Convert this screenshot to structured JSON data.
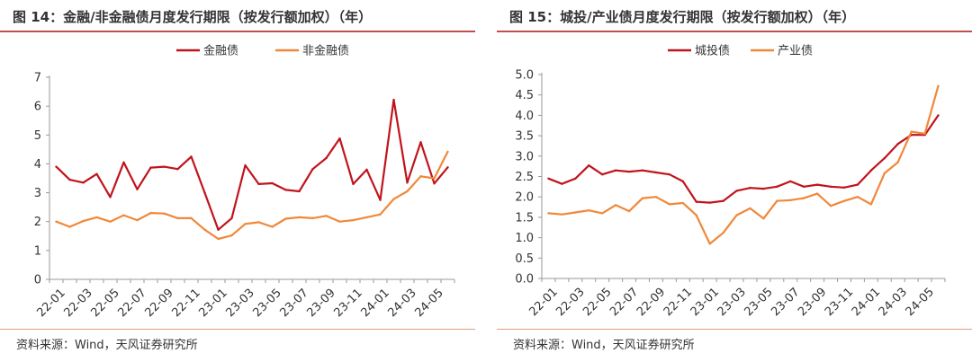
{
  "charts": [
    {
      "title": "图 14：金融/非金融债月度发行期限（按发行额加权）（年）",
      "source": "资料来源：Wind，天风证券研究所"
    },
    {
      "title": "图 15：城投/产业债月度发行期限（按发行额加权）（年）",
      "source": "资料来源：Wind，天风证券研究所"
    }
  ],
  "colors": {
    "primary": "#c0141c",
    "secondary": "#f0883a",
    "accent_line": "#c0504d"
  },
  "chart_data": [
    {
      "type": "line",
      "title": "",
      "xlabel": "",
      "ylabel": "",
      "ylim": [
        0,
        7
      ],
      "yticks": [
        "0",
        "1",
        "2",
        "3",
        "4",
        "5",
        "6",
        "7"
      ],
      "grid": false,
      "legend_position": "top-center",
      "x": [
        "22-01",
        "22-02",
        "22-03",
        "22-04",
        "22-05",
        "22-06",
        "22-07",
        "22-08",
        "22-09",
        "22-10",
        "22-11",
        "22-12",
        "23-01",
        "23-02",
        "23-03",
        "23-04",
        "23-05",
        "23-06",
        "23-07",
        "23-08",
        "23-09",
        "23-10",
        "23-11",
        "23-12",
        "24-01",
        "24-02",
        "24-03",
        "24-04",
        "24-05",
        "24-06"
      ],
      "xtick_labels": [
        "22-01",
        "22-03",
        "22-05",
        "22-07",
        "22-09",
        "22-11",
        "23-01",
        "23-03",
        "23-05",
        "23-07",
        "23-09",
        "23-11",
        "24-01",
        "24-03",
        "24-05"
      ],
      "series": [
        {
          "name": "金融债",
          "color": "#c0141c",
          "values": [
            3.9,
            3.45,
            3.35,
            3.65,
            2.85,
            4.05,
            3.12,
            3.87,
            3.9,
            3.82,
            4.25,
            3.0,
            1.72,
            2.12,
            3.95,
            3.3,
            3.33,
            3.1,
            3.05,
            3.82,
            4.2,
            4.88,
            3.3,
            3.8,
            2.75,
            6.22,
            3.35,
            4.75,
            3.32,
            3.88
          ]
        },
        {
          "name": "非金融债",
          "color": "#f0883a",
          "values": [
            2.0,
            1.82,
            2.02,
            2.15,
            2.0,
            2.22,
            2.05,
            2.3,
            2.28,
            2.12,
            2.12,
            1.72,
            1.4,
            1.52,
            1.92,
            1.98,
            1.82,
            2.1,
            2.15,
            2.12,
            2.2,
            2.0,
            2.05,
            2.15,
            2.25,
            2.78,
            3.05,
            3.57,
            3.5,
            4.42
          ]
        }
      ]
    },
    {
      "type": "line",
      "title": "",
      "xlabel": "",
      "ylabel": "",
      "ylim": [
        0,
        5
      ],
      "yticks": [
        "0.0",
        "0.5",
        "1.0",
        "1.5",
        "2.0",
        "2.5",
        "3.0",
        "3.5",
        "4.0",
        "4.5",
        "5.0"
      ],
      "grid": false,
      "legend_position": "top-center",
      "x": [
        "22-01",
        "22-02",
        "22-03",
        "22-04",
        "22-05",
        "22-06",
        "22-07",
        "22-08",
        "22-09",
        "22-10",
        "22-11",
        "22-12",
        "23-01",
        "23-02",
        "23-03",
        "23-04",
        "23-05",
        "23-06",
        "23-07",
        "23-08",
        "23-09",
        "23-10",
        "23-11",
        "23-12",
        "24-01",
        "24-02",
        "24-03",
        "24-04",
        "24-05",
        "24-06"
      ],
      "xtick_labels": [
        "22-01",
        "22-03",
        "22-05",
        "22-07",
        "22-09",
        "22-11",
        "23-01",
        "23-03",
        "23-05",
        "23-07",
        "23-09",
        "23-11",
        "24-01",
        "24-03",
        "24-05"
      ],
      "series": [
        {
          "name": "城投债",
          "color": "#c0141c",
          "values": [
            2.45,
            2.32,
            2.45,
            2.77,
            2.55,
            2.65,
            2.62,
            2.65,
            2.6,
            2.55,
            2.38,
            1.88,
            1.86,
            1.9,
            2.15,
            2.22,
            2.2,
            2.25,
            2.38,
            2.25,
            2.3,
            2.25,
            2.23,
            2.3,
            2.65,
            2.95,
            3.3,
            3.52,
            3.52,
            4.0
          ]
        },
        {
          "name": "产业债",
          "color": "#f0883a",
          "values": [
            1.6,
            1.57,
            1.62,
            1.67,
            1.6,
            1.8,
            1.65,
            1.97,
            2.0,
            1.82,
            1.85,
            1.55,
            0.85,
            1.12,
            1.55,
            1.72,
            1.47,
            1.9,
            1.92,
            1.97,
            2.08,
            1.78,
            1.9,
            2.0,
            1.82,
            2.58,
            2.85,
            3.6,
            3.55,
            4.72
          ]
        }
      ]
    }
  ]
}
